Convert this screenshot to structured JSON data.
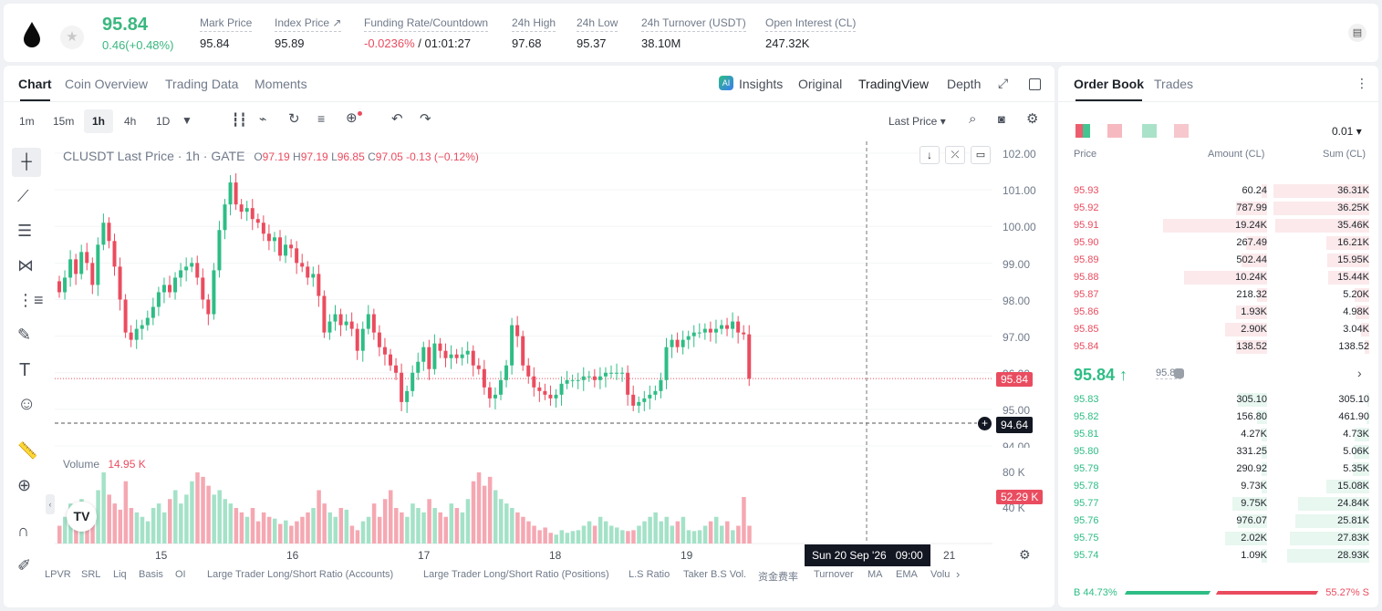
{
  "header": {
    "last_price": "95.84",
    "change": "0.46(+0.48%)",
    "stats": [
      {
        "label": "Mark Price",
        "value": "95.84",
        "x": 219
      },
      {
        "label": "Index Price ↗",
        "value": "95.89",
        "x": 301
      },
      {
        "label": "Funding Rate/Countdown",
        "value": "",
        "x": 399
      },
      {
        "label": "24h High",
        "value": "97.68",
        "x": 561
      },
      {
        "label": "24h Low",
        "value": "95.37",
        "x": 632
      },
      {
        "label": "24h Turnover (USDT)",
        "value": "38.10M",
        "x": 703
      },
      {
        "label": "Open Interest (CL)",
        "value": "247.32K",
        "x": 839
      }
    ],
    "funding_rate": "-0.0236%",
    "countdown": "/ 01:01:27"
  },
  "chart_tabs": [
    "Chart",
    "Coin Overview",
    "Trading Data",
    "Moments"
  ],
  "view_tabs": {
    "insights": "Insights",
    "original": "Original",
    "tradingview": "TradingView",
    "depth": "Depth"
  },
  "intervals": [
    "1m",
    "15m",
    "1h",
    "4h",
    "1D"
  ],
  "price_type": "Last Price ▾",
  "legend": {
    "symbol": "CLUSDT Last Price · 1h · GATE",
    "o": "97.19",
    "h": "97.19",
    "l": "96.85",
    "c": "97.05",
    "chg": "-0.13 (−0.12%)"
  },
  "volume": {
    "label": "Volume",
    "value": "14.95 K"
  },
  "price_axis": [
    "102.00",
    "101.00",
    "100.00",
    "99.00",
    "98.00",
    "97.00",
    "96.00",
    "95.00",
    "94.00"
  ],
  "vol_axis": [
    "80 K",
    "40 K"
  ],
  "price_tag": "95.84",
  "cross_tag": "94.64",
  "vol_tag": "52.29 K",
  "time_axis": [
    "15",
    "16",
    "17",
    "18",
    "19",
    "21"
  ],
  "cross_time": "Sun 20 Sep '26   09:00",
  "bottom_items": [
    "LPVR",
    "SRL",
    "Liq",
    "Basis",
    "OI",
    "Large Trader Long/Short Ratio (Accounts)",
    "Large Trader Long/Short Ratio (Positions)",
    "L.S Ratio",
    "Taker B.S Vol.",
    "资金费率",
    "Turnover",
    "MA",
    "EMA",
    "Volu"
  ],
  "orderbook": {
    "tabs": [
      "Order Book",
      "Trades"
    ],
    "precision": "0.01 ▾",
    "headers": [
      "Price",
      "Amount (CL)",
      "Sum (CL)"
    ],
    "asks": [
      [
        "95.93",
        "60.24",
        "36.31K",
        0.05,
        1.0
      ],
      [
        "95.92",
        "787.99",
        "36.25K",
        0.3,
        1.0
      ],
      [
        "95.91",
        "19.24K",
        "35.46K",
        1.0,
        0.98
      ],
      [
        "95.90",
        "267.49",
        "16.21K",
        0.2,
        0.45
      ],
      [
        "95.89",
        "502.44",
        "15.95K",
        0.25,
        0.44
      ],
      [
        "95.88",
        "10.24K",
        "15.44K",
        0.8,
        0.43
      ],
      [
        "95.87",
        "218.32",
        "5.20K",
        0.1,
        0.15
      ],
      [
        "95.86",
        "1.93K",
        "4.98K",
        0.3,
        0.14
      ],
      [
        "95.85",
        "2.90K",
        "3.04K",
        0.4,
        0.09
      ],
      [
        "95.84",
        "138.52",
        "138.52",
        0.3,
        0.05
      ]
    ],
    "mid": "95.84",
    "mark": "95.84",
    "bids": [
      [
        "95.83",
        "305.10",
        "305.10",
        0.28,
        0.02
      ],
      [
        "95.82",
        "156.80",
        "461.90",
        0.1,
        0.03
      ],
      [
        "95.81",
        "4.27K",
        "4.73K",
        0.05,
        0.15
      ],
      [
        "95.80",
        "331.25",
        "5.06K",
        0.05,
        0.16
      ],
      [
        "95.79",
        "290.92",
        "5.35K",
        0.05,
        0.17
      ],
      [
        "95.78",
        "9.73K",
        "15.08K",
        0.05,
        0.45
      ],
      [
        "95.77",
        "9.75K",
        "24.84K",
        0.33,
        0.74
      ],
      [
        "95.76",
        "976.07",
        "25.81K",
        0.28,
        0.77
      ],
      [
        "95.75",
        "2.02K",
        "27.83K",
        0.4,
        0.83
      ],
      [
        "95.74",
        "1.09K",
        "28.93K",
        0.05,
        0.86
      ]
    ],
    "buy_ratio": "B 44.73%",
    "sell_ratio": "55.27% S",
    "buy_frac": 0.4473
  },
  "chart_data": {
    "type": "candlestick",
    "interval": "1h",
    "symbol": "CLUSDT",
    "ylim": [
      94.0,
      102.0
    ],
    "close_path": [
      98.2,
      98.6,
      99.1,
      98.7,
      99.3,
      99.0,
      98.4,
      99.5,
      100.1,
      99.6,
      98.9,
      98.0,
      97.1,
      96.9,
      97.2,
      97.3,
      97.5,
      97.8,
      98.2,
      98.4,
      98.2,
      98.6,
      98.8,
      98.9,
      99.0,
      98.6,
      98.0,
      97.6,
      98.8,
      99.9,
      100.6,
      101.2,
      100.6,
      100.4,
      100.5,
      100.2,
      100.1,
      99.8,
      99.6,
      99.7,
      99.2,
      99.5,
      99.4,
      99.0,
      98.9,
      98.6,
      98.7,
      98.1,
      97.1,
      97.4,
      97.6,
      97.3,
      97.4,
      97.2,
      96.6,
      97.2,
      97.6,
      97.1,
      96.7,
      96.5,
      96.2,
      96.0,
      95.2,
      95.5,
      96.0,
      96.3,
      96.7,
      96.1,
      96.8,
      96.6,
      96.4,
      96.5,
      96.4,
      96.5,
      96.6,
      96.2,
      96.1,
      95.6,
      95.3,
      95.4,
      95.8,
      96.2,
      97.3,
      97.0,
      96.2,
      95.9,
      95.6,
      95.5,
      95.4,
      95.3,
      95.4,
      95.7,
      95.8,
      95.8,
      95.8,
      95.9,
      95.9,
      95.8,
      95.9,
      96.0,
      96.0,
      96.0,
      96.0,
      95.4,
      95.1,
      95.2,
      95.3,
      95.4,
      95.5,
      95.8,
      96.7,
      96.9,
      96.7,
      96.9,
      97.0,
      97.1,
      97.1,
      97.2,
      97.1,
      97.2,
      97.3,
      97.2,
      97.4,
      97.1,
      97.05,
      95.84
    ],
    "volume_k": [
      20,
      30,
      45,
      35,
      50,
      40,
      30,
      60,
      80,
      55,
      45,
      38,
      70,
      40,
      35,
      30,
      25,
      40,
      45,
      35,
      50,
      60,
      45,
      55,
      70,
      80,
      75,
      65,
      55,
      60,
      50,
      45,
      40,
      35,
      30,
      40,
      25,
      35,
      30,
      28,
      22,
      26,
      20,
      25,
      30,
      35,
      40,
      60,
      45,
      35,
      30,
      40,
      38,
      20,
      15,
      25,
      30,
      45,
      30,
      50,
      60,
      40,
      35,
      30,
      45,
      40,
      35,
      50,
      40,
      35,
      30,
      45,
      40,
      35,
      50,
      70,
      80,
      65,
      75,
      60,
      50,
      45,
      40,
      35,
      30,
      25,
      20,
      15,
      18,
      12,
      10,
      15,
      12,
      14,
      15,
      20,
      25,
      20,
      30,
      25,
      20,
      18,
      15,
      14,
      15,
      20,
      25,
      30,
      35,
      25,
      30,
      20,
      25,
      30,
      15,
      14,
      15,
      20,
      25,
      30,
      20,
      25,
      15,
      20,
      52.29
    ],
    "x_ticks": [
      "15",
      "16",
      "17",
      "18",
      "19",
      "21"
    ]
  }
}
